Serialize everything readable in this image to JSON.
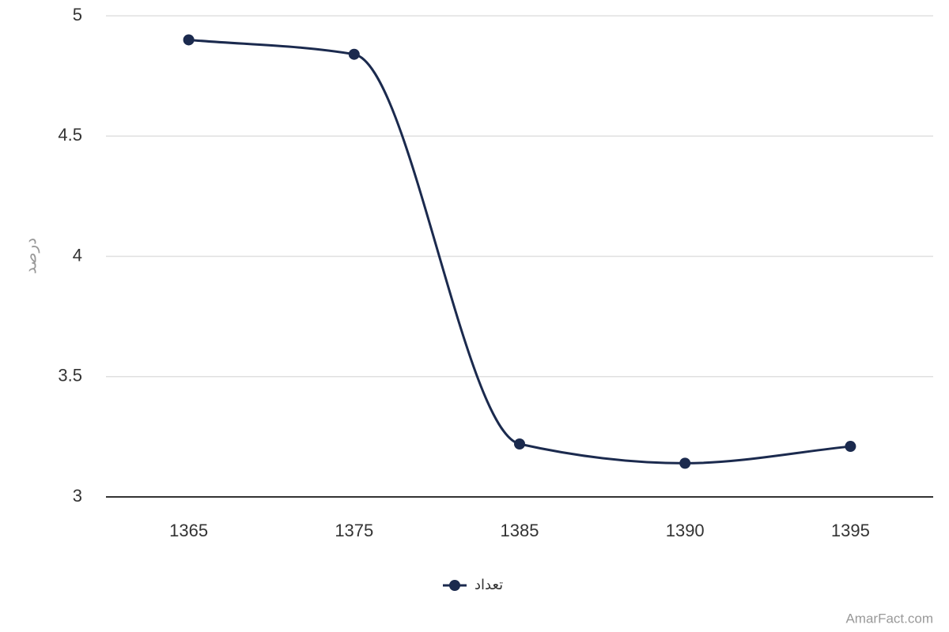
{
  "chart_data": {
    "type": "line",
    "y_label": "درصد",
    "categories": [
      "1365",
      "1375",
      "1385",
      "1390",
      "1395"
    ],
    "series": [
      {
        "name": "تعداد",
        "color": "#1b2a4e",
        "values": [
          4.9,
          4.84,
          3.22,
          3.14,
          3.21
        ]
      }
    ],
    "ylim": [
      3,
      5
    ],
    "yticks": [
      3,
      3.5,
      4,
      4.5,
      5
    ],
    "grid": true,
    "smooth": true,
    "legend": "bottom",
    "credit": "AmarFact.com"
  }
}
